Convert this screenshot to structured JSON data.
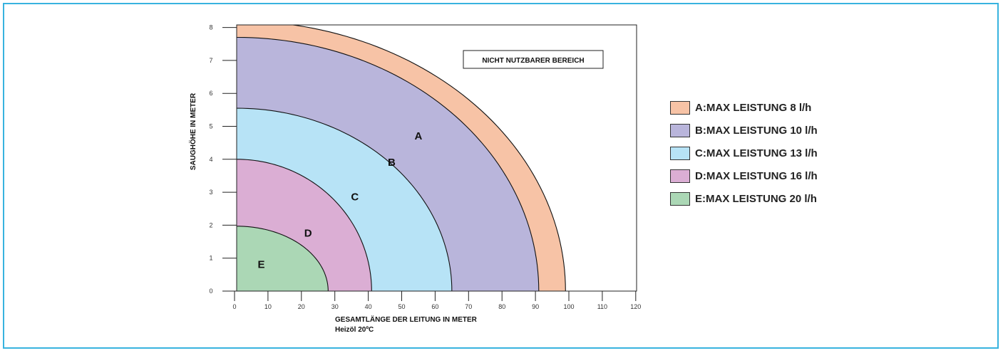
{
  "chart_data": {
    "type": "area",
    "xlabel": "GESAMTLÄNGE DER LEITUNG IN METER",
    "xlabel_sub": "Heizöl 20ºC",
    "ylabel": "SAUGHÖHE IN METER",
    "xlim": [
      0,
      120
    ],
    "ylim": [
      0,
      8
    ],
    "x_ticks": [
      0,
      10,
      20,
      30,
      40,
      50,
      60,
      70,
      80,
      90,
      100,
      110,
      120
    ],
    "y_ticks": [
      0,
      1,
      2,
      3,
      4,
      5,
      6,
      7,
      8
    ],
    "annotation": "NICHT NUTZBARER BEREICH",
    "series": [
      {
        "name": "A:MAX LEISTUNG 8 l/h",
        "label": "A",
        "color": "#f7c3a6",
        "y_intercept": 8.2,
        "x_intercept": 99,
        "label_at": [
          55,
          4.6
        ]
      },
      {
        "name": "B:MAX LEISTUNG 10 l/h",
        "label": "B",
        "color": "#b9b5db",
        "y_intercept": 7.7,
        "x_intercept": 91,
        "label_at": [
          47,
          3.8
        ]
      },
      {
        "name": "C:MAX LEISTUNG 13 l/h",
        "label": "C",
        "color": "#b7e3f6",
        "y_intercept": 5.55,
        "x_intercept": 65,
        "label_at": [
          36,
          2.75
        ]
      },
      {
        "name": "D:MAX LEISTUNG 16 l/h",
        "label": "D",
        "color": "#dbaed4",
        "y_intercept": 4.0,
        "x_intercept": 41,
        "label_at": [
          22,
          1.65
        ]
      },
      {
        "name": "E:MAX LEISTUNG 20 l/h",
        "label": "E",
        "color": "#abd7b5",
        "y_intercept": 1.97,
        "x_intercept": 28,
        "label_at": [
          8,
          0.7
        ]
      }
    ]
  }
}
